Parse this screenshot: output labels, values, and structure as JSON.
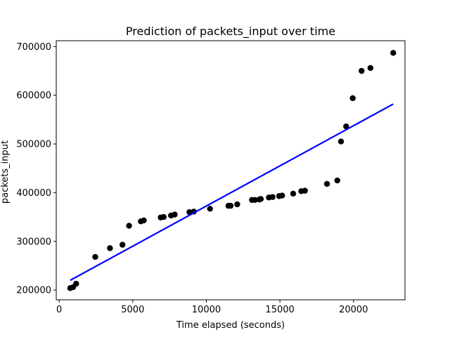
{
  "chart_data": {
    "type": "scatter",
    "title": "Prediction of packets_input over time",
    "xlabel": "Time elapsed (seconds)",
    "ylabel": "packets_input",
    "xlim": [
      -200,
      23500
    ],
    "ylim": [
      180000,
      712000
    ],
    "xticks": [
      0,
      5000,
      10000,
      15000,
      20000
    ],
    "yticks": [
      200000,
      300000,
      400000,
      500000,
      600000,
      700000
    ],
    "grid": false,
    "colors": {
      "points": "#000000",
      "line": "#0000ff"
    },
    "series": [
      {
        "kind": "scatter",
        "points": [
          [
            750,
            204000
          ],
          [
            950,
            206000
          ],
          [
            1150,
            213000
          ],
          [
            2450,
            268000
          ],
          [
            3450,
            286000
          ],
          [
            4300,
            293000
          ],
          [
            4750,
            332000
          ],
          [
            5550,
            341000
          ],
          [
            5750,
            343000
          ],
          [
            6900,
            349000
          ],
          [
            7100,
            350000
          ],
          [
            7600,
            353000
          ],
          [
            7850,
            355000
          ],
          [
            8850,
            360000
          ],
          [
            9150,
            361000
          ],
          [
            10250,
            367000
          ],
          [
            11500,
            373000
          ],
          [
            11650,
            373000
          ],
          [
            12100,
            376000
          ],
          [
            13100,
            385000
          ],
          [
            13300,
            385000
          ],
          [
            13600,
            386000
          ],
          [
            13700,
            387000
          ],
          [
            14250,
            390000
          ],
          [
            14500,
            391000
          ],
          [
            14950,
            393000
          ],
          [
            15150,
            394000
          ],
          [
            15900,
            398000
          ],
          [
            16450,
            403000
          ],
          [
            16700,
            404000
          ],
          [
            18200,
            418000
          ],
          [
            18900,
            425000
          ],
          [
            19150,
            505000
          ],
          [
            19500,
            536000
          ],
          [
            19950,
            594000
          ],
          [
            20550,
            650000
          ],
          [
            21150,
            656000
          ],
          [
            22700,
            687000
          ]
        ]
      },
      {
        "kind": "line",
        "points": [
          [
            750,
            220000
          ],
          [
            22700,
            582000
          ]
        ]
      }
    ]
  }
}
